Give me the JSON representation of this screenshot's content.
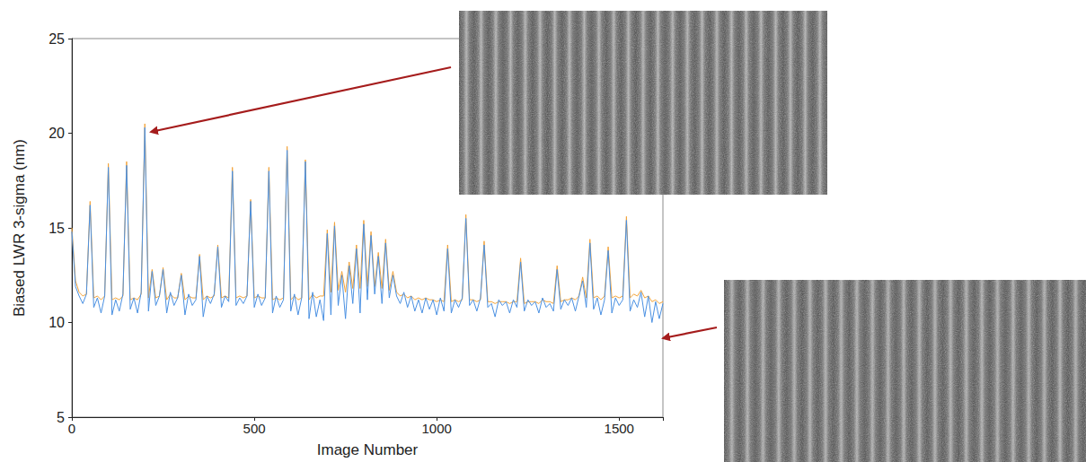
{
  "chart_data": {
    "type": "line",
    "x_label": "Image Number",
    "y_label": "Biased LWR 3-sigma (nm)",
    "x": [
      0,
      10,
      20,
      30,
      40,
      50,
      60,
      70,
      80,
      90,
      100,
      110,
      120,
      130,
      140,
      150,
      160,
      170,
      180,
      190,
      200,
      210,
      220,
      230,
      240,
      250,
      260,
      270,
      280,
      290,
      300,
      310,
      320,
      330,
      340,
      350,
      360,
      370,
      380,
      390,
      400,
      410,
      420,
      430,
      440,
      450,
      460,
      470,
      480,
      490,
      500,
      510,
      520,
      530,
      540,
      550,
      560,
      570,
      580,
      590,
      600,
      610,
      620,
      630,
      640,
      650,
      660,
      670,
      680,
      690,
      700,
      710,
      720,
      730,
      740,
      750,
      760,
      770,
      780,
      790,
      800,
      810,
      820,
      830,
      840,
      850,
      860,
      870,
      880,
      890,
      900,
      910,
      920,
      930,
      940,
      950,
      960,
      970,
      980,
      990,
      1000,
      1010,
      1020,
      1030,
      1040,
      1050,
      1060,
      1070,
      1080,
      1090,
      1100,
      1110,
      1120,
      1130,
      1140,
      1150,
      1160,
      1170,
      1180,
      1190,
      1200,
      1210,
      1220,
      1230,
      1240,
      1250,
      1260,
      1270,
      1280,
      1290,
      1300,
      1310,
      1320,
      1330,
      1340,
      1350,
      1360,
      1370,
      1380,
      1390,
      1400,
      1410,
      1420,
      1430,
      1440,
      1450,
      1460,
      1470,
      1480,
      1490,
      1500,
      1510,
      1520,
      1530,
      1540,
      1550,
      1560,
      1570,
      1580,
      1590,
      1600,
      1610,
      1620
    ],
    "series": [
      {
        "color": "#f2a33a",
        "values": [
          15.0,
          12.2,
          11.6,
          11.4,
          11.5,
          16.4,
          11.3,
          11.4,
          11.2,
          11.4,
          18.4,
          11.2,
          11.3,
          11.2,
          11.4,
          18.5,
          11.2,
          11.3,
          11.2,
          11.5,
          20.5,
          11.3,
          12.8,
          11.3,
          11.4,
          12.9,
          11.2,
          11.5,
          11.3,
          11.3,
          12.6,
          11.2,
          11.4,
          11.3,
          11.3,
          13.6,
          11.2,
          11.4,
          11.3,
          11.4,
          14.1,
          11.3,
          11.4,
          11.3,
          18.2,
          11.3,
          11.4,
          11.3,
          11.4,
          16.5,
          11.3,
          11.4,
          11.3,
          11.3,
          18.2,
          11.2,
          11.3,
          11.2,
          11.3,
          19.3,
          11.2,
          11.4,
          11.2,
          11.3,
          18.6,
          11.2,
          11.5,
          11.3,
          11.4,
          11.4,
          14.9,
          11.6,
          15.3,
          11.7,
          12.7,
          11.6,
          13.2,
          11.8,
          14.1,
          11.8,
          15.4,
          11.9,
          14.8,
          11.9,
          13.7,
          11.8,
          14.4,
          11.7,
          12.7,
          11.6,
          11.4,
          11.5,
          11.3,
          11.4,
          11.2,
          11.3,
          11.2,
          11.3,
          11.2,
          11.2,
          11.1,
          11.2,
          11.1,
          14.1,
          11.1,
          11.2,
          11.1,
          11.2,
          15.7,
          11.2,
          11.2,
          11.1,
          11.2,
          14.3,
          11.1,
          11.1,
          11.0,
          11.1,
          11.1,
          11.1,
          11.0,
          11.1,
          11.1,
          13.4,
          11.0,
          11.1,
          11.1,
          11.1,
          11.0,
          11.2,
          11.1,
          11.1,
          11.0,
          13.0,
          11.1,
          11.2,
          11.2,
          11.3,
          11.2,
          11.4,
          12.4,
          11.3,
          14.4,
          11.3,
          11.4,
          11.2,
          11.4,
          14.0,
          11.3,
          11.4,
          11.3,
          11.4,
          15.6,
          11.3,
          11.5,
          11.4,
          11.7,
          11.3,
          11.4,
          11.1,
          11.2,
          11.0,
          11.1
        ]
      },
      {
        "color": "#4a90e2",
        "values": [
          14.8,
          11.9,
          11.4,
          11.0,
          11.5,
          16.2,
          10.8,
          11.3,
          10.5,
          11.4,
          18.2,
          10.4,
          11.2,
          10.6,
          11.5,
          18.3,
          10.7,
          11.3,
          10.5,
          11.6,
          20.3,
          10.6,
          12.7,
          10.9,
          11.4,
          12.8,
          10.5,
          11.6,
          10.9,
          11.3,
          12.5,
          10.4,
          11.5,
          10.9,
          11.2,
          13.5,
          10.3,
          11.4,
          11.0,
          11.5,
          14.0,
          10.8,
          11.4,
          11.1,
          18.0,
          10.9,
          11.3,
          11.0,
          11.4,
          16.4,
          10.8,
          11.5,
          10.9,
          11.3,
          18.0,
          10.5,
          11.4,
          10.8,
          11.2,
          19.1,
          10.6,
          11.5,
          10.4,
          11.3,
          18.5,
          10.2,
          11.6,
          10.3,
          11.2,
          10.1,
          14.7,
          10.4,
          15.1,
          10.9,
          12.5,
          10.2,
          13.0,
          11.0,
          13.9,
          10.5,
          15.2,
          11.2,
          14.6,
          11.5,
          13.5,
          11.0,
          14.2,
          11.3,
          12.5,
          11.4,
          11.0,
          11.6,
          10.8,
          11.4,
          10.6,
          11.2,
          10.5,
          11.3,
          10.7,
          11.2,
          10.4,
          11.3,
          10.6,
          13.9,
          10.5,
          11.2,
          10.8,
          11.3,
          15.5,
          10.9,
          11.2,
          10.6,
          11.3,
          14.1,
          10.8,
          11.0,
          10.3,
          11.2,
          10.9,
          11.1,
          10.5,
          11.2,
          10.8,
          13.2,
          10.6,
          11.2,
          10.9,
          11.1,
          10.5,
          11.3,
          10.8,
          11.0,
          10.6,
          12.8,
          10.7,
          11.2,
          10.9,
          11.3,
          10.6,
          11.4,
          12.2,
          10.8,
          14.2,
          10.7,
          11.3,
          10.4,
          11.2,
          13.8,
          10.5,
          11.3,
          10.9,
          11.2,
          15.4,
          10.6,
          11.2,
          10.8,
          11.6,
          10.3,
          11.4,
          10.0,
          11.1,
          10.2,
          11.0
        ]
      }
    ],
    "xlim": [
      0,
      1620
    ],
    "xticks": [
      0,
      500,
      1000,
      1500
    ],
    "ylim": [
      5,
      25
    ],
    "yticks": [
      5,
      10,
      15,
      20,
      25
    ],
    "grid": false
  }
}
